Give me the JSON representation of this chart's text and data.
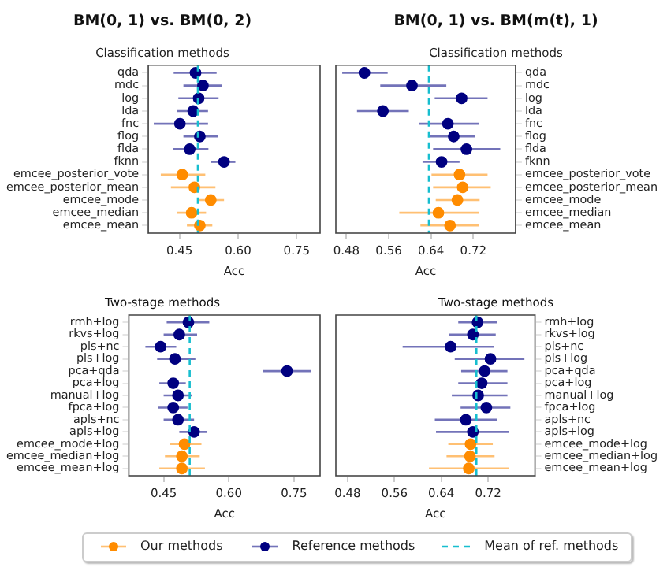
{
  "chart_data": [
    {
      "type": "scatter",
      "title": "BM(0, 1) vs. BM(0, 2)",
      "subtitle": "Classification methods",
      "xlabel": "Acc",
      "orientation": "horizontal",
      "legend": "bottom",
      "grid": false,
      "marker": "circle",
      "categories": [
        "qda",
        "mdc",
        "log",
        "lda",
        "fnc",
        "flog",
        "flda",
        "fknn",
        "emcee_posterior_vote",
        "emcee_posterior_mean",
        "emcee_mode",
        "emcee_median",
        "emcee_mean"
      ],
      "xlim": [
        0.37,
        0.81
      ],
      "xticks": [
        0.45,
        {
          "value": 0.6,
          "label": "0.60"
        },
        0.75
      ],
      "ref_lines": [
        {
          "axis": "x",
          "value": 0.497,
          "label": "Mean of ref. methods",
          "color": "#17becf",
          "line_style": "dashed"
        }
      ],
      "series": [
        {
          "name": "Our methods",
          "color": "#ff8c00",
          "values": [
            null,
            null,
            null,
            null,
            null,
            null,
            null,
            null,
            0.457,
            0.488,
            0.53,
            0.481,
            0.502
          ],
          "errors": [
            null,
            null,
            null,
            null,
            null,
            null,
            null,
            null,
            [
              0.402,
              0.516
            ],
            [
              0.428,
              0.542
            ],
            [
              0.498,
              0.564
            ],
            [
              0.443,
              0.518
            ],
            [
              0.469,
              0.534
            ]
          ]
        },
        {
          "name": "Reference methods",
          "color": "#000080",
          "values": [
            0.491,
            0.51,
            0.499,
            0.485,
            0.451,
            0.502,
            0.476,
            0.564,
            null,
            null,
            null,
            null,
            null
          ],
          "errors": [
            [
              0.435,
              0.545
            ],
            [
              0.46,
              0.559
            ],
            [
              0.447,
              0.55
            ],
            [
              0.443,
              0.523
            ],
            [
              0.384,
              0.523
            ],
            [
              0.46,
              0.548
            ],
            [
              0.433,
              0.524
            ],
            [
              0.53,
              0.593
            ],
            null,
            null,
            null,
            null,
            null
          ]
        }
      ]
    },
    {
      "type": "scatter",
      "title": "BM(0, 1) vs. BM(m(t), 1)",
      "subtitle": "Classification methods",
      "xlabel": "Acc",
      "orientation": "horizontal",
      "grid": false,
      "marker": "circle",
      "categories": [
        "qda",
        "mdc",
        "log",
        "lda",
        "fnc",
        "flog",
        "flda",
        "fknn",
        "emcee_posterior_vote",
        "emcee_posterior_mean",
        "emcee_mode",
        "emcee_median",
        "emcee_mean"
      ],
      "xlim": [
        0.46,
        0.8
      ],
      "xticks": [
        0.48,
        0.56,
        0.64,
        0.72
      ],
      "ref_lines": [
        {
          "axis": "x",
          "value": 0.636,
          "color": "#17becf",
          "line_style": "dashed"
        }
      ],
      "series": [
        {
          "color": "#ff8c00",
          "values": [
            null,
            null,
            null,
            null,
            null,
            null,
            null,
            null,
            0.694,
            0.7,
            0.69,
            0.654,
            0.676
          ],
          "errors": [
            null,
            null,
            null,
            null,
            null,
            null,
            null,
            null,
            [
              0.641,
              0.747
            ],
            [
              0.644,
              0.753
            ],
            [
              0.649,
              0.732
            ],
            [
              0.58,
              0.73
            ],
            [
              0.62,
              0.731
            ]
          ]
        },
        {
          "color": "#000080",
          "values": [
            0.514,
            0.604,
            0.698,
            0.549,
            0.672,
            0.683,
            0.707,
            0.66,
            null,
            null,
            null,
            null,
            null
          ],
          "errors": [
            [
              0.472,
              0.558
            ],
            [
              0.544,
              0.669
            ],
            [
              0.647,
              0.747
            ],
            [
              0.5,
              0.598
            ],
            [
              0.618,
              0.73
            ],
            [
              0.639,
              0.724
            ],
            [
              0.644,
              0.771
            ],
            [
              0.624,
              0.694
            ],
            null,
            null,
            null,
            null,
            null
          ]
        }
      ]
    },
    {
      "type": "scatter",
      "title": "Two-stage methods",
      "xlabel": "Acc",
      "orientation": "horizontal",
      "grid": false,
      "marker": "circle",
      "categories": [
        "rmh+log",
        "rkvs+log",
        "pls+nc",
        "pls+log",
        "pca+qda",
        "pca+log",
        "manual+log",
        "fpca+log",
        "apls+nc",
        "apls+log",
        "emcee_mode+log",
        "emcee_median+log",
        "emcee_mean+log"
      ],
      "xlim": [
        0.37,
        0.81
      ],
      "xticks": [
        0.45,
        {
          "value": 0.6,
          "label": "0.60"
        },
        0.75
      ],
      "ref_lines": [
        {
          "axis": "x",
          "value": 0.51,
          "color": "#17becf",
          "line_style": "dashed"
        }
      ],
      "series": [
        {
          "color": "#ff8c00",
          "values": [
            null,
            null,
            null,
            null,
            null,
            null,
            null,
            null,
            null,
            null,
            0.498,
            0.492,
            0.492
          ],
          "errors": [
            null,
            null,
            null,
            null,
            null,
            null,
            null,
            null,
            null,
            null,
            [
              0.465,
              0.537
            ],
            [
              0.453,
              0.533
            ],
            [
              0.44,
              0.545
            ]
          ]
        },
        {
          "color": "#000080",
          "values": [
            0.507,
            0.486,
            0.443,
            0.476,
            0.734,
            0.472,
            0.483,
            0.472,
            0.483,
            0.52,
            null,
            null,
            null
          ],
          "errors": [
            [
              0.457,
              0.555
            ],
            [
              0.45,
              0.527
            ],
            [
              0.408,
              0.479
            ],
            [
              0.435,
              0.523
            ],
            [
              0.679,
              0.789
            ],
            [
              0.44,
              0.501
            ],
            [
              0.45,
              0.516
            ],
            [
              0.438,
              0.505
            ],
            [
              0.45,
              0.52
            ],
            [
              0.486,
              0.55
            ],
            null,
            null,
            null
          ]
        }
      ]
    },
    {
      "type": "scatter",
      "title": "Two-stage methods",
      "xlabel": "Acc",
      "orientation": "horizontal",
      "grid": false,
      "marker": "circle",
      "categories": [
        "rmh+log",
        "rkvs+log",
        "pls+nc",
        "pls+log",
        "pca+qda",
        "pca+log",
        "manual+log",
        "fpca+log",
        "apls+nc",
        "apls+log",
        "emcee_mode+log",
        "emcee_median+log",
        "emcee_mean+log"
      ],
      "xlim": [
        0.46,
        0.8
      ],
      "xticks": [
        0.48,
        0.56,
        0.64,
        0.72
      ],
      "ref_lines": [
        {
          "axis": "x",
          "value": 0.7,
          "color": "#17becf",
          "line_style": "dashed"
        }
      ],
      "series": [
        {
          "color": "#ff8c00",
          "values": [
            null,
            null,
            null,
            null,
            null,
            null,
            null,
            null,
            null,
            null,
            0.69,
            0.689,
            0.687
          ],
          "errors": [
            null,
            null,
            null,
            null,
            null,
            null,
            null,
            null,
            null,
            null,
            [
              0.652,
              0.728
            ],
            [
              0.649,
              0.731
            ],
            [
              0.619,
              0.756
            ]
          ]
        },
        {
          "color": "#000080",
          "values": [
            0.702,
            0.694,
            0.656,
            0.724,
            0.714,
            0.709,
            0.703,
            0.717,
            0.682,
            0.694,
            null,
            null,
            null
          ],
          "errors": [
            [
              0.669,
              0.736
            ],
            [
              0.653,
              0.733
            ],
            [
              0.574,
              0.73
            ],
            [
              0.663,
              0.782
            ],
            [
              0.674,
              0.753
            ],
            [
              0.669,
              0.753
            ],
            [
              0.658,
              0.753
            ],
            [
              0.673,
              0.758
            ],
            [
              0.629,
              0.736
            ],
            [
              0.631,
              0.756
            ],
            null,
            null,
            null
          ]
        }
      ]
    }
  ]
}
